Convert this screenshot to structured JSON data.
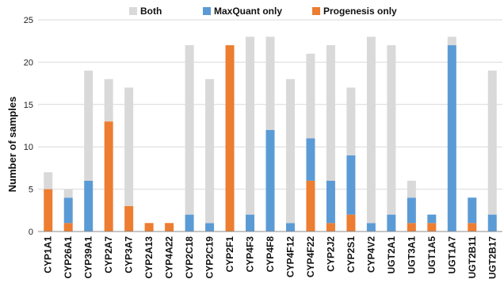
{
  "chart_data": {
    "type": "bar",
    "stacked": true,
    "categories": [
      "CYP1A1",
      "CYP26A1",
      "CYP39A1",
      "CYP2A7",
      "CYP3A7",
      "CYP2A13",
      "CYP4A22",
      "CYP2C18",
      "CYP2C19",
      "CYP2F1",
      "CYP4F3",
      "CYP4F8",
      "CYP4F12",
      "CYP4F22",
      "CYP2J2",
      "CYP2S1",
      "CYP4V2",
      "UGT2A1",
      "UGT3A1",
      "UGT1A5",
      "UGT1A7",
      "UGT2B11",
      "UGT2B17"
    ],
    "series": [
      {
        "name": "Progenesis only",
        "color": "#ED7D31",
        "values": [
          5,
          1,
          0,
          13,
          3,
          1,
          1,
          0,
          0,
          22,
          0,
          0,
          0,
          6,
          1,
          2,
          0,
          0,
          1,
          1,
          0,
          1,
          0
        ]
      },
      {
        "name": "MaxQuant only",
        "color": "#5B9BD5",
        "values": [
          0,
          3,
          6,
          0,
          0,
          0,
          0,
          2,
          1,
          0,
          2,
          12,
          1,
          5,
          5,
          7,
          1,
          2,
          3,
          1,
          22,
          3,
          2
        ]
      },
      {
        "name": "Both",
        "color": "#D9D9D9",
        "values": [
          2,
          1,
          13,
          5,
          14,
          0,
          0,
          20,
          17,
          0,
          21,
          11,
          17,
          10,
          16,
          8,
          22,
          20,
          2,
          0,
          1,
          0,
          17
        ]
      }
    ],
    "legend_order": [
      "Both",
      "MaxQuant only",
      "Progenesis only"
    ],
    "legend_position": "top",
    "ylabel": "Number of samples",
    "xlabel": "",
    "ylim": [
      0,
      25
    ],
    "yticks": [
      0,
      5,
      10,
      15,
      20,
      25
    ],
    "grid": true
  }
}
